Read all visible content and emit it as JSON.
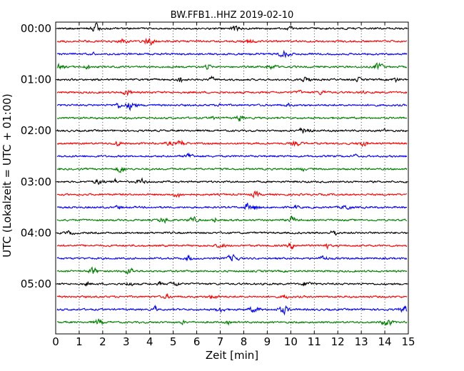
{
  "chart_data": {
    "type": "line",
    "title": "BW.FFB1..HHZ 2019-02-10",
    "xlabel": "Zeit  [min]",
    "ylabel": "UTC (Lokalzeit = UTC + 01:00)",
    "xlim": [
      0,
      15
    ],
    "x_ticks": [
      "0",
      "1",
      "2",
      "3",
      "4",
      "5",
      "6",
      "7",
      "8",
      "9",
      "10",
      "11",
      "12",
      "13",
      "14",
      "15"
    ],
    "y_tick_labels": [
      "00:00",
      "01:00",
      "02:00",
      "03:00",
      "04:00",
      "05:00"
    ],
    "grid": "vertical dotted lines at each minute",
    "trace_colors": [
      "#000000",
      "#ff0000",
      "#0000ff",
      "#008000"
    ],
    "trace_interval_minutes": 15,
    "trace_count": 24
  }
}
